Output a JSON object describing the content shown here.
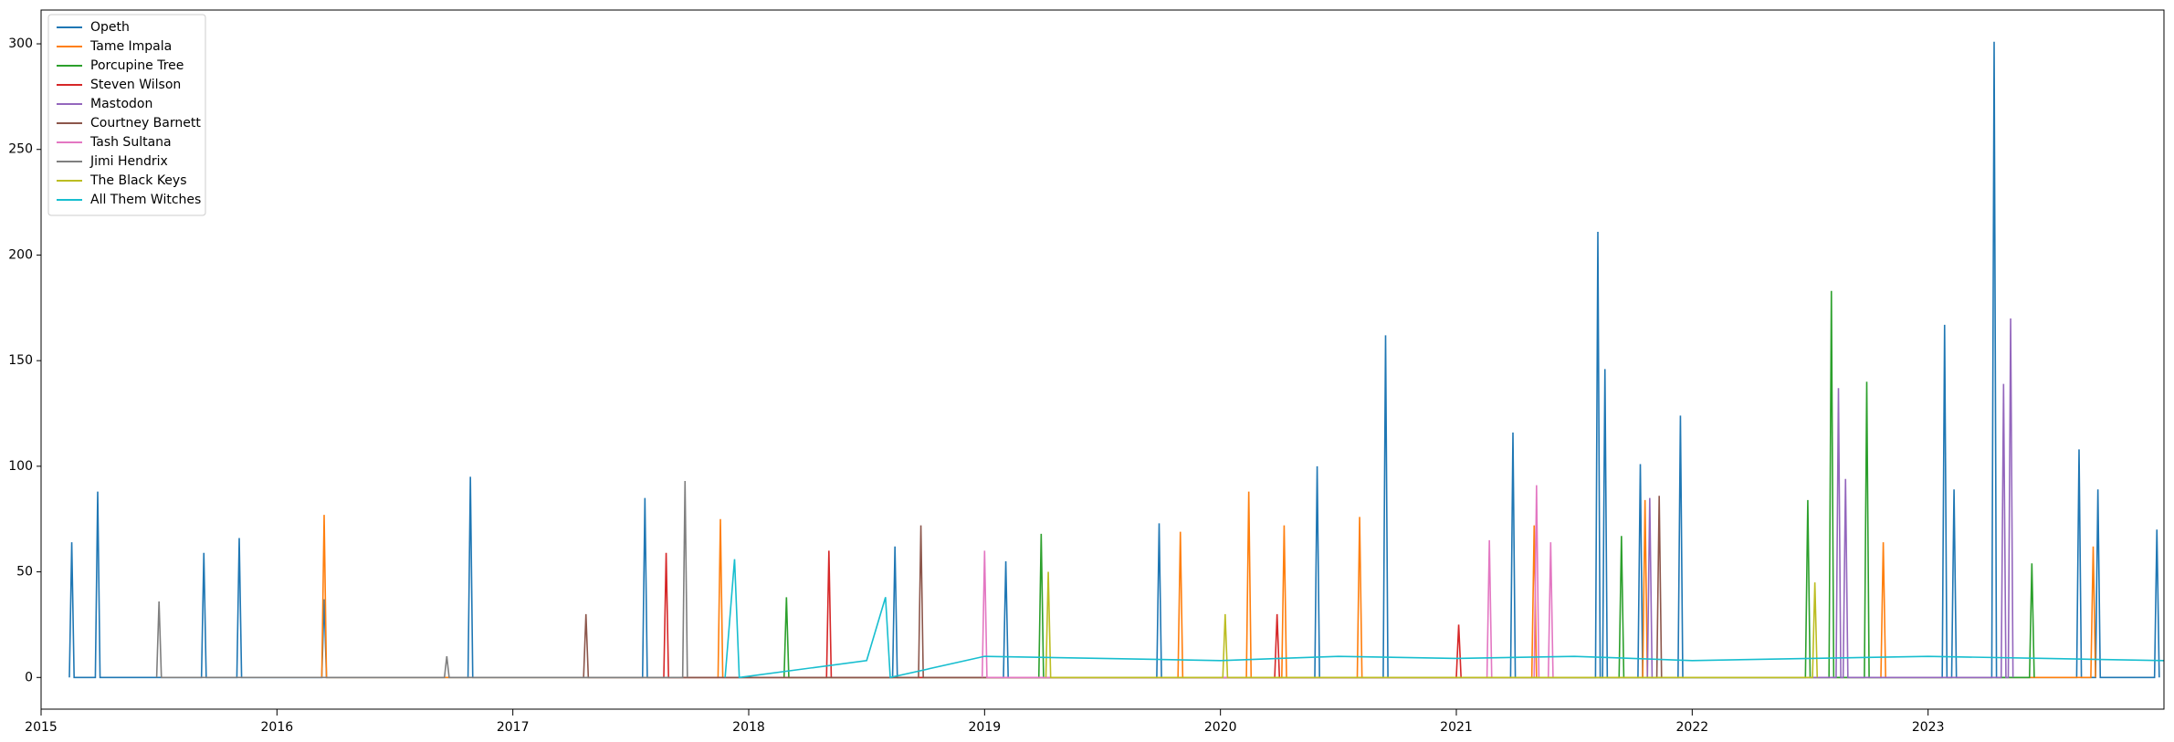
{
  "chart_data": {
    "type": "line",
    "xlim": [
      2015,
      2024
    ],
    "xticks": [
      2015,
      2016,
      2017,
      2018,
      2019,
      2020,
      2021,
      2022,
      2023
    ],
    "ylim": [
      -15,
      316
    ],
    "yticks": [
      0,
      50,
      100,
      150,
      200,
      250,
      300
    ],
    "legend": "upper left",
    "series": [
      {
        "name": "Opeth",
        "color": "#1f77b4",
        "x": [
          2015.12,
          2015.13,
          2015.14,
          2015.23,
          2015.24,
          2015.25,
          2015.68,
          2015.69,
          2015.7,
          2015.83,
          2015.84,
          2015.85,
          2016.19,
          2016.2,
          2016.21,
          2016.81,
          2016.82,
          2016.83,
          2017.55,
          2017.56,
          2017.57,
          2018.61,
          2018.62,
          2018.63,
          2019.08,
          2019.09,
          2019.1,
          2019.73,
          2019.74,
          2019.75,
          2020.4,
          2020.41,
          2020.42,
          2020.69,
          2020.7,
          2020.71,
          2021.23,
          2021.24,
          2021.25,
          2021.59,
          2021.6,
          2021.61,
          2021.62,
          2021.63,
          2021.64,
          2021.77,
          2021.78,
          2021.79,
          2021.94,
          2021.95,
          2021.96,
          2023.06,
          2023.07,
          2023.08,
          2023.1,
          2023.11,
          2023.12,
          2023.27,
          2023.28,
          2023.29,
          2023.63,
          2023.64,
          2023.65,
          2023.71,
          2023.72,
          2023.73,
          2023.96,
          2023.97,
          2023.98
        ],
        "values": [
          0,
          64,
          0,
          0,
          88,
          0,
          0,
          59,
          0,
          0,
          66,
          0,
          0,
          37,
          0,
          0,
          95,
          0,
          0,
          85,
          0,
          0,
          62,
          0,
          0,
          55,
          0,
          0,
          73,
          0,
          0,
          100,
          0,
          0,
          162,
          0,
          0,
          116,
          0,
          0,
          211,
          0,
          0,
          146,
          0,
          0,
          101,
          0,
          0,
          124,
          0,
          0,
          167,
          0,
          0,
          89,
          0,
          0,
          301,
          0,
          0,
          108,
          0,
          0,
          89,
          0,
          0,
          70,
          0
        ]
      },
      {
        "name": "Tame Impala",
        "color": "#ff7f0e",
        "x": [
          2016.19,
          2016.2,
          2016.21,
          2017.87,
          2017.88,
          2017.89,
          2019.82,
          2019.83,
          2019.84,
          2020.11,
          2020.12,
          2020.13,
          2020.26,
          2020.27,
          2020.28,
          2020.58,
          2020.59,
          2020.6,
          2021.32,
          2021.33,
          2021.34,
          2021.79,
          2021.8,
          2021.81,
          2022.8,
          2022.81,
          2022.82,
          2023.69,
          2023.7,
          2023.71
        ],
        "values": [
          0,
          77,
          0,
          0,
          75,
          0,
          0,
          69,
          0,
          0,
          88,
          0,
          0,
          72,
          0,
          0,
          76,
          0,
          0,
          72,
          0,
          0,
          84,
          0,
          0,
          64,
          0,
          0,
          62,
          0
        ]
      },
      {
        "name": "Porcupine Tree",
        "color": "#2ca02c",
        "x": [
          2018.15,
          2018.16,
          2018.17,
          2019.23,
          2019.24,
          2019.25,
          2021.69,
          2021.7,
          2021.71,
          2022.48,
          2022.49,
          2022.5,
          2022.58,
          2022.59,
          2022.6,
          2022.73,
          2022.74,
          2022.75,
          2023.43,
          2023.44,
          2023.45
        ],
        "values": [
          0,
          38,
          0,
          0,
          68,
          0,
          0,
          67,
          0,
          0,
          84,
          0,
          0,
          183,
          0,
          0,
          140,
          0,
          0,
          54,
          0
        ]
      },
      {
        "name": "Steven Wilson",
        "color": "#d62728",
        "x": [
          2017.64,
          2017.65,
          2017.66,
          2018.33,
          2018.34,
          2018.35,
          2020.23,
          2020.24,
          2020.25,
          2021.0,
          2021.01,
          2021.02
        ],
        "values": [
          0,
          59,
          0,
          0,
          60,
          0,
          0,
          30,
          0,
          0,
          25,
          0
        ]
      },
      {
        "name": "Mastodon",
        "color": "#9467bd",
        "x": [
          2021.81,
          2021.82,
          2021.83,
          2022.61,
          2022.62,
          2022.63,
          2022.64,
          2022.65,
          2022.66,
          2023.31,
          2023.32,
          2023.33,
          2023.34,
          2023.35,
          2023.36
        ],
        "values": [
          0,
          85,
          0,
          0,
          137,
          0,
          0,
          94,
          0,
          0,
          139,
          0,
          0,
          170,
          0
        ]
      },
      {
        "name": "Courtney Barnett",
        "color": "#8c564b",
        "x": [
          2017.3,
          2017.31,
          2017.32,
          2018.72,
          2018.73,
          2018.74,
          2021.85,
          2021.86,
          2021.87
        ],
        "values": [
          0,
          30,
          0,
          0,
          72,
          0,
          0,
          86,
          0
        ]
      },
      {
        "name": "Tash Sultana",
        "color": "#e377c2",
        "x": [
          2018.99,
          2019.0,
          2019.01,
          2021.13,
          2021.14,
          2021.15,
          2021.33,
          2021.34,
          2021.35,
          2021.39,
          2021.4,
          2021.41
        ],
        "values": [
          0,
          60,
          0,
          0,
          65,
          0,
          0,
          91,
          0,
          0,
          64,
          0
        ]
      },
      {
        "name": "Jimi Hendrix",
        "color": "#7f7f7f",
        "x": [
          2015.49,
          2015.5,
          2015.51,
          2016.71,
          2016.72,
          2016.73,
          2017.72,
          2017.73,
          2017.74
        ],
        "values": [
          0,
          36,
          0,
          0,
          10,
          0,
          0,
          93,
          0
        ]
      },
      {
        "name": "The Black Keys",
        "color": "#bcbd22",
        "x": [
          2019.26,
          2019.27,
          2019.28,
          2020.01,
          2020.02,
          2020.03,
          2022.51,
          2022.52,
          2022.53
        ],
        "values": [
          0,
          50,
          0,
          0,
          30,
          0,
          0,
          45,
          0
        ]
      },
      {
        "name": "All Them Witches",
        "color": "#17becf",
        "x": [
          2017.9,
          2017.94,
          2017.96,
          2018.5,
          2018.58,
          2018.6,
          2019.0,
          2019.5,
          2020.0,
          2020.5,
          2021.0,
          2021.5,
          2022.0,
          2022.5,
          2023.0,
          2023.5,
          2024.0
        ],
        "values": [
          0,
          56,
          0,
          8,
          38,
          0,
          10,
          9,
          8,
          10,
          9,
          10,
          8,
          9,
          10,
          9,
          8
        ]
      }
    ]
  }
}
